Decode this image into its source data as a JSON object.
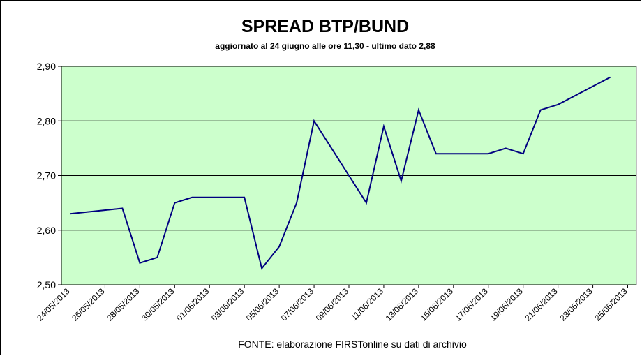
{
  "chart_data": {
    "type": "line",
    "title": "SPREAD  BTP/BUND",
    "subtitle": "aggiornato al 24 giugno alle ore 11,30 - ultimo dato 2,88",
    "source": "FONTE: elaborazione FIRSTonline su dati di archivio",
    "x": [
      "24/05/2013",
      "27/05/2013",
      "28/05/2013",
      "29/05/2013",
      "30/05/2013",
      "31/05/2013",
      "03/06/2013",
      "04/06/2013",
      "05/06/2013",
      "06/06/2013",
      "07/06/2013",
      "10/06/2013",
      "11/06/2013",
      "12/06/2013",
      "13/06/2013",
      "14/06/2013",
      "17/06/2013",
      "18/06/2013",
      "19/06/2013",
      "20/06/2013",
      "21/06/2013",
      "24/06/2013"
    ],
    "series": [
      {
        "name": "Spread BTP/BUND",
        "color": "#000080",
        "values": [
          2.63,
          2.64,
          2.54,
          2.55,
          2.65,
          2.66,
          2.66,
          2.53,
          2.57,
          2.65,
          2.8,
          2.65,
          2.79,
          2.69,
          2.82,
          2.74,
          2.74,
          2.75,
          2.74,
          2.82,
          2.83,
          2.88
        ]
      }
    ],
    "xlim": [
      "24/05/2013",
      "25/06/2013"
    ],
    "xticks": [
      "24/05/2013",
      "26/05/2013",
      "28/05/2013",
      "30/05/2013",
      "01/06/2013",
      "03/06/2013",
      "05/06/2013",
      "07/06/2013",
      "09/06/2013",
      "11/06/2013",
      "13/06/2013",
      "15/06/2013",
      "17/06/2013",
      "19/06/2013",
      "21/06/2013",
      "23/06/2013",
      "25/06/2013"
    ],
    "ylim": [
      2.5,
      2.9
    ],
    "yticks": [
      {
        "value": 2.5,
        "label": "2,50"
      },
      {
        "value": 2.6,
        "label": "2,60"
      },
      {
        "value": 2.7,
        "label": "2,70"
      },
      {
        "value": 2.8,
        "label": "2,80"
      },
      {
        "value": 2.9,
        "label": "2,90"
      }
    ],
    "grid": true,
    "plot_background": "#ccffcc"
  }
}
